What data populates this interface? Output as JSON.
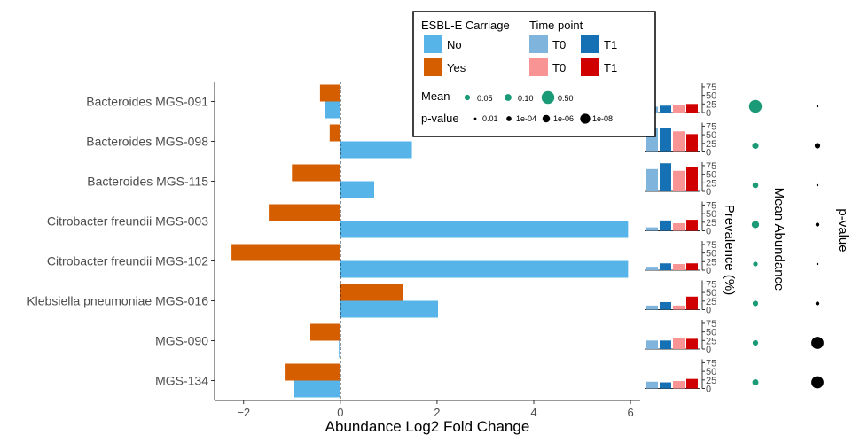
{
  "chart_data": {
    "type": "bar",
    "orientation": "horizontal",
    "categories": [
      "Bacteroides MGS-091",
      "Bacteroides MGS-098",
      "Bacteroides MGS-115",
      "Citrobacter freundii MGS-003",
      "Citrobacter freundii MGS-102",
      "Klebsiella pneumoniae MGS-016",
      "MGS-090",
      "MGS-134"
    ],
    "xlabel": "Abundance Log2 Fold Change",
    "xlim": [
      -2.6,
      6.2
    ],
    "x_ticks": [
      -2,
      0,
      2,
      4,
      6
    ],
    "grid": false,
    "series": [
      {
        "name": "Yes",
        "color": "#d55e00",
        "values": [
          -0.42,
          -0.22,
          -1.0,
          -1.48,
          -2.25,
          1.3,
          -0.62,
          -1.15
        ]
      },
      {
        "name": "No",
        "color": "#56b4e9",
        "values": [
          -0.32,
          1.48,
          0.7,
          5.95,
          5.95,
          2.02,
          -0.03,
          -0.95
        ]
      }
    ],
    "prevalence": {
      "title": "Prevalence (%)",
      "ylim": [
        0,
        80
      ],
      "ticks": [
        "0",
        "25",
        "50",
        "75"
      ],
      "series": [
        {
          "label": "T0",
          "color": "#7fb5dc",
          "values": [
            17,
            70,
            65,
            10,
            10,
            12,
            25,
            20
          ]
        },
        {
          "label": "T1",
          "color": "#1571b3",
          "values": [
            20,
            70,
            82,
            30,
            20,
            22,
            25,
            18
          ]
        },
        {
          "label": "T0",
          "color": "#f99494",
          "values": [
            22,
            60,
            60,
            22,
            18,
            12,
            33,
            22
          ]
        },
        {
          "label": "T1",
          "color": "#d10000",
          "values": [
            25,
            52,
            72,
            32,
            20,
            38,
            30,
            28
          ]
        }
      ]
    },
    "mean_abundance": {
      "title": "Mean Abundance",
      "color": "#1a9a76",
      "values": [
        0.5,
        0.08,
        0.06,
        0.12,
        0.03,
        0.05,
        0.05,
        0.07
      ]
    },
    "p_value": {
      "title": "p-value",
      "color": "#000000",
      "values": [
        0.01,
        0.0001,
        0.01,
        0.001,
        0.01,
        0.001,
        1e-08,
        1e-08
      ]
    },
    "legend": {
      "position": "top-right",
      "carriage": {
        "title": "ESBL-E Carriage",
        "items": [
          {
            "label": "No",
            "color": "#56b4e9"
          },
          {
            "label": "Yes",
            "color": "#d55e00"
          }
        ]
      },
      "time": {
        "title": "Time point",
        "items": [
          {
            "label": "T0",
            "color": "#7fb5dc"
          },
          {
            "label": "T1",
            "color": "#1571b3"
          },
          {
            "label": "T0",
            "color": "#f99494"
          },
          {
            "label": "T1",
            "color": "#d10000"
          }
        ]
      },
      "mean": {
        "title": "Mean",
        "items": [
          {
            "label": "0.05",
            "value": 0.05
          },
          {
            "label": "0.10",
            "value": 0.1
          },
          {
            "label": "0.50",
            "value": 0.5
          }
        ]
      },
      "pvalue": {
        "title": "p-value",
        "items": [
          {
            "label": "0.01",
            "value": 0.01
          },
          {
            "label": "1e-04",
            "value": 0.0001
          },
          {
            "label": "1e-06",
            "value": 1e-06
          },
          {
            "label": "1e-08",
            "value": 1e-08
          }
        ]
      }
    }
  }
}
